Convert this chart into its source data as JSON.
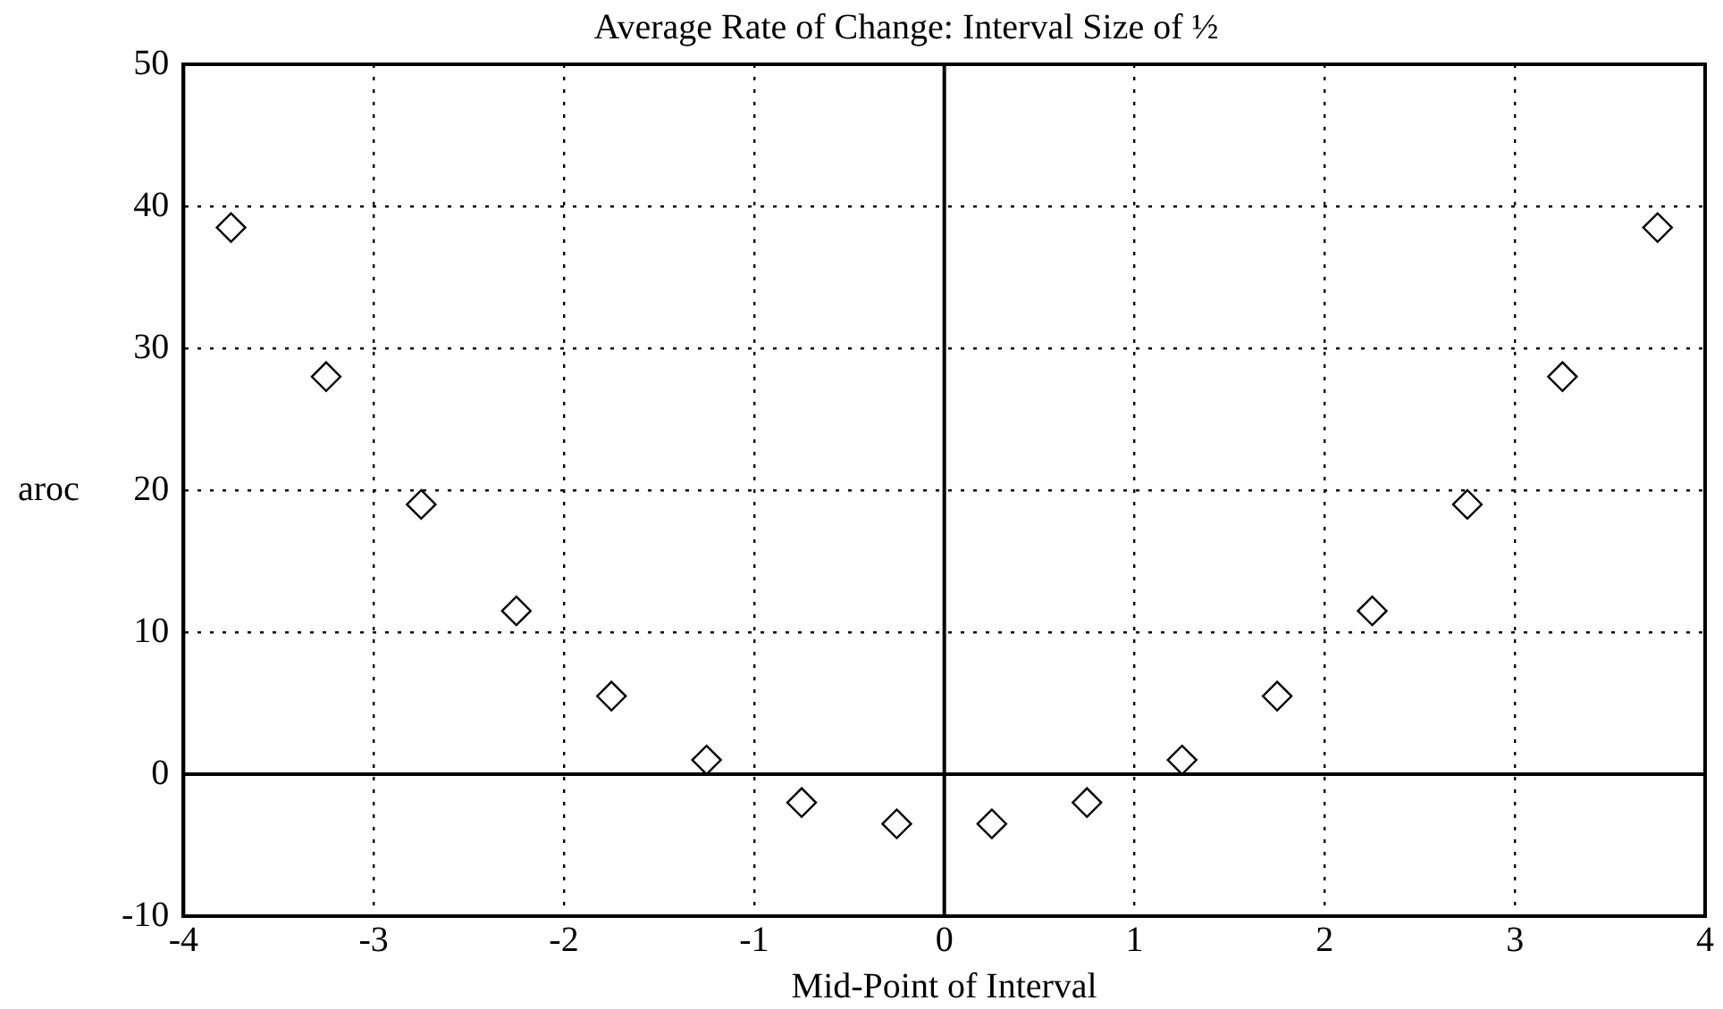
{
  "chart_data": {
    "type": "scatter",
    "title": "Average Rate of Change: Interval Size of ½",
    "xlabel": "Mid-Point of Interval",
    "ylabel": "aroc",
    "x": [
      -3.75,
      -3.25,
      -2.75,
      -2.25,
      -1.75,
      -1.25,
      -0.75,
      -0.25,
      0.25,
      0.75,
      1.25,
      1.75,
      2.25,
      2.75,
      3.25,
      3.75
    ],
    "values": [
      38.5,
      28,
      19,
      11.5,
      5.5,
      1,
      -2,
      -3.5,
      -3.5,
      -2,
      1,
      5.5,
      11.5,
      19,
      28,
      38.5
    ],
    "color": "#000000",
    "marker": "diamond",
    "xlim": [
      -4,
      4
    ],
    "xticks": [
      -4,
      -3,
      -2,
      -1,
      0,
      1,
      2,
      3,
      4
    ],
    "ylim": [
      -10,
      50
    ],
    "yticks": [
      -10,
      0,
      10,
      20,
      30,
      40,
      50
    ],
    "grid": true
  }
}
